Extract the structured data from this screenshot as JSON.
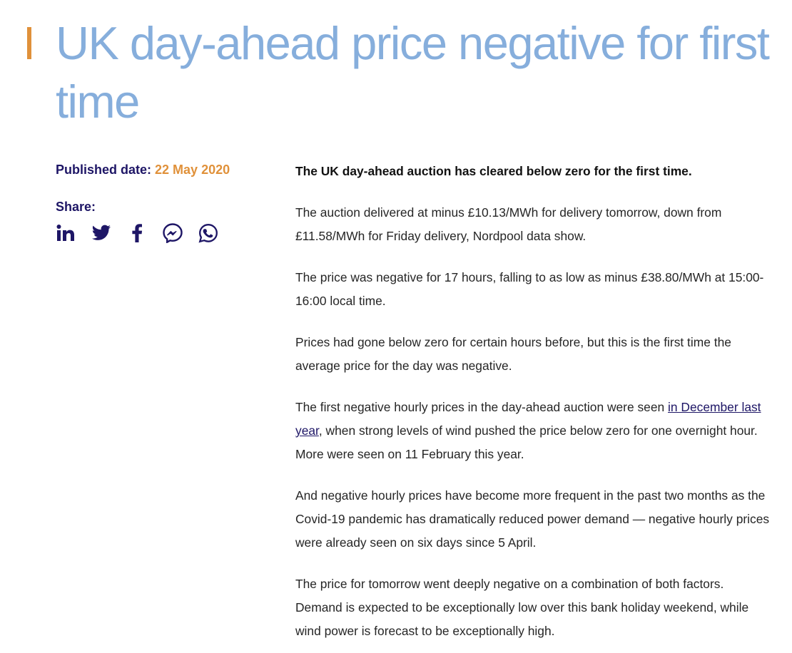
{
  "title": {
    "text": "UK day-ahead price negative for first time"
  },
  "meta": {
    "published_label": "Published date:",
    "published_date": "22 May 2020",
    "share_label": "Share:"
  },
  "share_icons": [
    {
      "name": "linkedin-icon"
    },
    {
      "name": "twitter-icon"
    },
    {
      "name": "facebook-icon"
    },
    {
      "name": "messenger-icon"
    },
    {
      "name": "whatsapp-icon"
    }
  ],
  "colors": {
    "title": "#86aedc",
    "accent": "#e0913a",
    "navy": "#1e1666",
    "body_text": "#262626"
  },
  "article": {
    "lead": "The UK day-ahead auction has cleared below zero for the first time.",
    "p1": "The auction delivered at minus £10.13/MWh for delivery tomorrow, down from £11.58/MWh for Friday delivery, Nordpool data show.",
    "p2": "The price was negative for 17 hours, falling to as low as minus £38.80/MWh at 15:00-16:00 local time.",
    "p3": "Prices had gone below zero for certain hours before, but this is the first time the average price for the day was negative.",
    "p4_before": "The first negative hourly prices in the day-ahead auction were seen ",
    "p4_link": "in December last year",
    "p4_after": ", when strong levels of wind pushed the price below zero for one overnight hour. More were seen on 11 February this year.",
    "p5": "And negative hourly prices have become more frequent in the past two months as the Covid-19 pandemic has dramatically reduced power demand — negative hourly prices were already seen on six days since 5 April.",
    "p6": "The price for tomorrow went deeply negative on a combination of both factors. Demand is expected to be exceptionally low over this bank holiday weekend, while wind power is forecast to be exceptionally high."
  }
}
